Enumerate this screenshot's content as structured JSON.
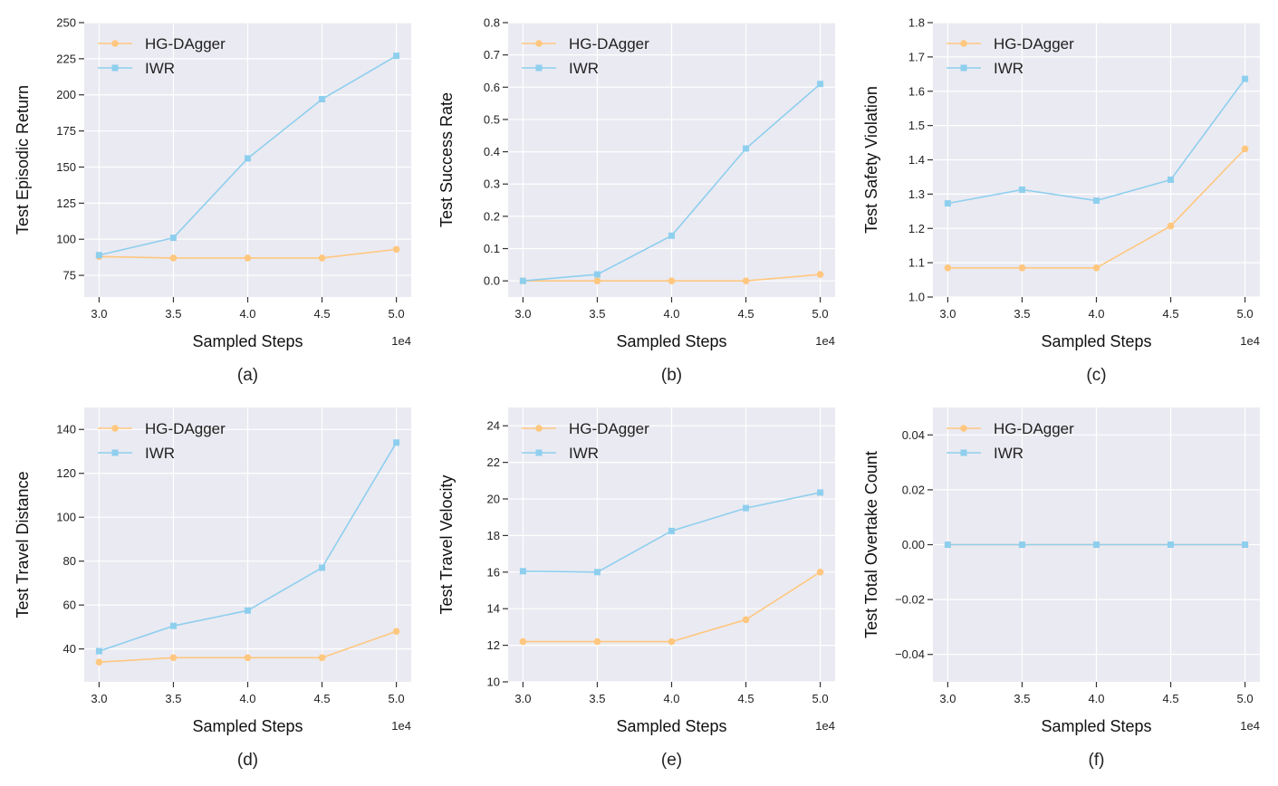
{
  "figure": {
    "style": {
      "plot_bg": "#eaeaf2",
      "grid_color": "#ffffff",
      "tick_color": "#333333"
    },
    "series_style": [
      {
        "name": "HG-DAgger",
        "color": "#ffc77f",
        "marker": "circle"
      },
      {
        "name": "IWR",
        "color": "#8ecfee",
        "marker": "square"
      }
    ]
  },
  "chart_data": [
    {
      "id": "a",
      "type": "line",
      "caption": "(a)",
      "xlabel": "Sampled Steps",
      "ylabel": "Test Episodic Return",
      "x_offset_label": "1e4",
      "x": [
        3.0,
        3.5,
        4.0,
        4.5,
        5.0
      ],
      "xticks": [
        "3.0",
        "3.5",
        "4.0",
        "4.5",
        "5.0"
      ],
      "xlim": [
        2.9,
        5.1
      ],
      "ylim": [
        60,
        250
      ],
      "yticks": [
        75,
        100,
        125,
        150,
        175,
        200,
        225,
        250
      ],
      "ytick_labels": [
        "75",
        "100",
        "125",
        "150",
        "175",
        "200",
        "225",
        "250"
      ],
      "legend": "top-left",
      "series": [
        {
          "name": "HG-DAgger",
          "values": [
            88,
            87,
            87,
            87,
            93
          ]
        },
        {
          "name": "IWR",
          "values": [
            89,
            101,
            156,
            197,
            227
          ]
        }
      ]
    },
    {
      "id": "b",
      "type": "line",
      "caption": "(b)",
      "xlabel": "Sampled Steps",
      "ylabel": "Test Success Rate",
      "x_offset_label": "1e4",
      "x": [
        3.0,
        3.5,
        4.0,
        4.5,
        5.0
      ],
      "xticks": [
        "3.0",
        "3.5",
        "4.0",
        "4.5",
        "5.0"
      ],
      "xlim": [
        2.9,
        5.1
      ],
      "ylim": [
        -0.05,
        0.8
      ],
      "yticks": [
        0.0,
        0.1,
        0.2,
        0.3,
        0.4,
        0.5,
        0.6,
        0.7,
        0.8
      ],
      "ytick_labels": [
        "0.0",
        "0.1",
        "0.2",
        "0.3",
        "0.4",
        "0.5",
        "0.6",
        "0.7",
        "0.8"
      ],
      "legend": "top-left",
      "series": [
        {
          "name": "HG-DAgger",
          "values": [
            0.0,
            0.0,
            0.0,
            0.0,
            0.02
          ]
        },
        {
          "name": "IWR",
          "values": [
            0.0,
            0.02,
            0.14,
            0.41,
            0.61
          ]
        }
      ]
    },
    {
      "id": "c",
      "type": "line",
      "caption": "(c)",
      "xlabel": "Sampled Steps",
      "ylabel": "Test Safety Violation",
      "x_offset_label": "1e4",
      "x": [
        3.0,
        3.5,
        4.0,
        4.5,
        5.0
      ],
      "xticks": [
        "3.0",
        "3.5",
        "4.0",
        "4.5",
        "5.0"
      ],
      "xlim": [
        2.9,
        5.1
      ],
      "ylim": [
        1.0,
        1.8
      ],
      "yticks": [
        1.0,
        1.1,
        1.2,
        1.3,
        1.4,
        1.5,
        1.6,
        1.7,
        1.8
      ],
      "ytick_labels": [
        "1.0",
        "1.1",
        "1.2",
        "1.3",
        "1.4",
        "1.5",
        "1.6",
        "1.7",
        "1.8"
      ],
      "legend": "top-left",
      "series": [
        {
          "name": "HG-DAgger",
          "values": [
            1.085,
            1.085,
            1.085,
            1.207,
            1.432
          ]
        },
        {
          "name": "IWR",
          "values": [
            1.273,
            1.313,
            1.281,
            1.342,
            1.636
          ]
        }
      ]
    },
    {
      "id": "d",
      "type": "line",
      "caption": "(d)",
      "xlabel": "Sampled Steps",
      "ylabel": "Test Travel Distance",
      "x_offset_label": "1e4",
      "x": [
        3.0,
        3.5,
        4.0,
        4.5,
        5.0
      ],
      "xticks": [
        "3.0",
        "3.5",
        "4.0",
        "4.5",
        "5.0"
      ],
      "xlim": [
        2.9,
        5.1
      ],
      "ylim": [
        25,
        150
      ],
      "yticks": [
        40,
        60,
        80,
        100,
        120,
        140
      ],
      "ytick_labels": [
        "40",
        "60",
        "80",
        "100",
        "120",
        "140"
      ],
      "legend": "top-left",
      "series": [
        {
          "name": "HG-DAgger",
          "values": [
            34,
            36,
            36,
            36,
            48
          ]
        },
        {
          "name": "IWR",
          "values": [
            39,
            50.5,
            57.5,
            77,
            134
          ]
        }
      ]
    },
    {
      "id": "e",
      "type": "line",
      "caption": "(e)",
      "xlabel": "Sampled Steps",
      "ylabel": "Test Travel Velocity",
      "x_offset_label": "1e4",
      "x": [
        3.0,
        3.5,
        4.0,
        4.5,
        5.0
      ],
      "xticks": [
        "3.0",
        "3.5",
        "4.0",
        "4.5",
        "5.0"
      ],
      "xlim": [
        2.9,
        5.1
      ],
      "ylim": [
        10,
        25
      ],
      "yticks": [
        10,
        12,
        14,
        16,
        18,
        20,
        22,
        24
      ],
      "ytick_labels": [
        "10",
        "12",
        "14",
        "16",
        "18",
        "20",
        "22",
        "24"
      ],
      "legend": "top-left",
      "series": [
        {
          "name": "HG-DAgger",
          "values": [
            12.2,
            12.2,
            12.2,
            13.4,
            16.0
          ]
        },
        {
          "name": "IWR",
          "values": [
            16.05,
            16.0,
            18.25,
            19.5,
            20.35
          ]
        }
      ]
    },
    {
      "id": "f",
      "type": "line",
      "caption": "(f)",
      "xlabel": "Sampled Steps",
      "ylabel": "Test Total Overtake Count",
      "x_offset_label": "1e4",
      "x": [
        3.0,
        3.5,
        4.0,
        4.5,
        5.0
      ],
      "xticks": [
        "3.0",
        "3.5",
        "4.0",
        "4.5",
        "5.0"
      ],
      "xlim": [
        2.9,
        5.1
      ],
      "ylim": [
        -0.05,
        0.05
      ],
      "yticks": [
        -0.04,
        -0.02,
        0.0,
        0.02,
        0.04
      ],
      "ytick_labels": [
        "−0.04",
        "−0.02",
        "0.00",
        "0.02",
        "0.04"
      ],
      "legend": "top-left",
      "series": [
        {
          "name": "HG-DAgger",
          "values": [
            0.0,
            0.0,
            0.0,
            0.0,
            0.0
          ]
        },
        {
          "name": "IWR",
          "values": [
            0.0,
            0.0,
            0.0,
            0.0,
            0.0
          ]
        }
      ]
    }
  ]
}
